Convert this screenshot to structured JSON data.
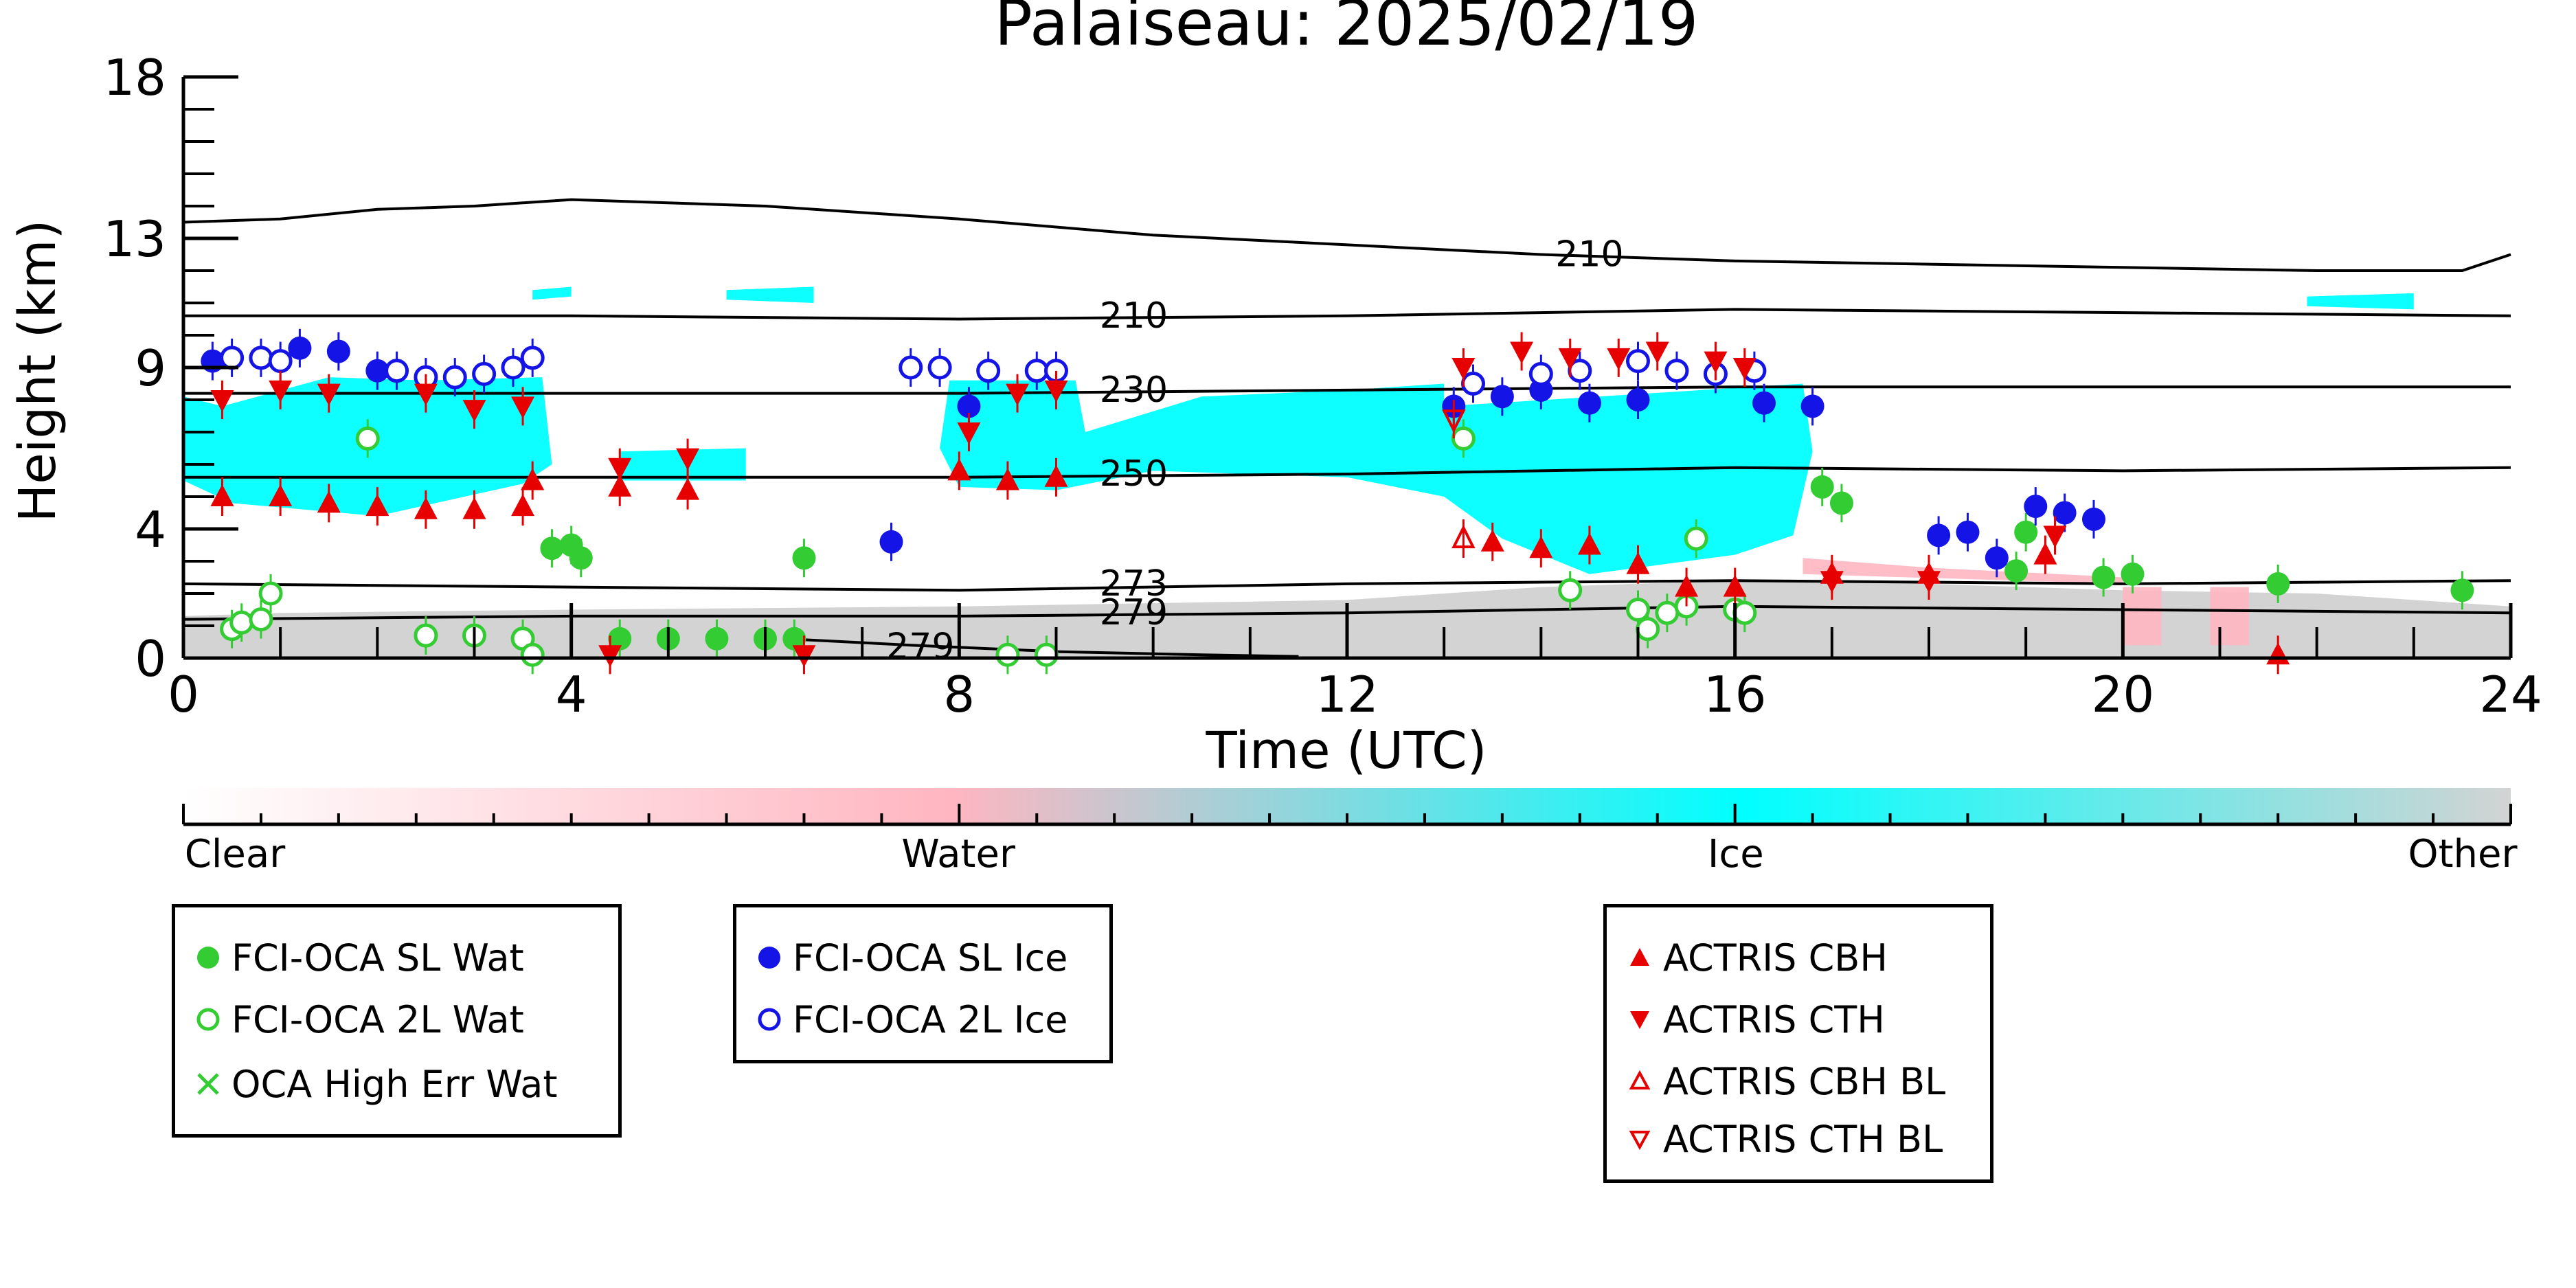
{
  "chart_data": {
    "type": "scatter",
    "title": "Palaiseau: 2025/02/19",
    "xlabel": "Time (UTC)",
    "ylabel": "Height (km)",
    "xlim": [
      0,
      24
    ],
    "ylim": [
      0,
      18
    ],
    "x_ticks": [
      "0",
      "4",
      "8",
      "12",
      "16",
      "20",
      "24"
    ],
    "y_ticks": [
      "0",
      "4",
      "9",
      "13",
      "18"
    ],
    "colorbar": {
      "labels": [
        "Clear",
        "Water",
        "Ice",
        "Other"
      ],
      "colors": [
        "#ffffff",
        "#ffb6c1",
        "#00ffff",
        "#d3d3d3"
      ]
    },
    "background": {
      "description_classes": [
        "Ice",
        "Other",
        "Water"
      ],
      "ice_color": "#00ffff",
      "other_color": "#d3d3d3",
      "water_color": "#ffb6c1"
    },
    "contours": [
      {
        "label": "210",
        "points": [
          [
            0,
            13.5
          ],
          [
            1,
            13.6
          ],
          [
            2,
            13.9
          ],
          [
            3,
            14.0
          ],
          [
            4,
            14.2
          ],
          [
            6,
            14.0
          ],
          [
            8,
            13.6
          ],
          [
            10,
            13.1
          ],
          [
            12,
            12.8
          ],
          [
            14,
            12.5
          ],
          [
            16,
            12.3
          ],
          [
            18,
            12.2
          ],
          [
            20,
            12.1
          ],
          [
            22,
            12.0
          ],
          [
            23.5,
            12.0
          ],
          [
            24,
            12.5
          ]
        ]
      },
      {
        "label": "210",
        "points": [
          [
            0,
            10.6
          ],
          [
            4,
            10.6
          ],
          [
            8,
            10.5
          ],
          [
            12,
            10.6
          ],
          [
            16,
            10.8
          ],
          [
            20,
            10.7
          ],
          [
            24,
            10.6
          ]
        ]
      },
      {
        "label": "230",
        "points": [
          [
            0,
            8.2
          ],
          [
            4,
            8.2
          ],
          [
            8,
            8.2
          ],
          [
            12,
            8.3
          ],
          [
            16,
            8.4
          ],
          [
            20,
            8.4
          ],
          [
            24,
            8.4
          ]
        ]
      },
      {
        "label": "250",
        "points": [
          [
            0,
            5.6
          ],
          [
            4,
            5.6
          ],
          [
            8,
            5.6
          ],
          [
            12,
            5.7
          ],
          [
            16,
            5.9
          ],
          [
            20,
            5.8
          ],
          [
            24,
            5.9
          ]
        ]
      },
      {
        "label": "273",
        "points": [
          [
            0,
            2.3
          ],
          [
            4,
            2.2
          ],
          [
            8,
            2.1
          ],
          [
            12,
            2.3
          ],
          [
            16,
            2.4
          ],
          [
            20,
            2.3
          ],
          [
            24,
            2.4
          ]
        ]
      },
      {
        "label": "279",
        "points": [
          [
            0,
            1.2
          ],
          [
            4,
            1.3
          ],
          [
            8,
            1.3
          ],
          [
            12,
            1.4
          ],
          [
            16,
            1.6
          ],
          [
            20,
            1.5
          ],
          [
            24,
            1.4
          ]
        ]
      },
      {
        "label": "279",
        "points": [
          [
            6.2,
            0.6
          ],
          [
            7.5,
            0.4
          ],
          [
            9,
            0.2
          ],
          [
            10.5,
            0.1
          ],
          [
            11.5,
            0.05
          ]
        ]
      }
    ],
    "series": [
      {
        "name": "FCI-OCA SL Wat",
        "marker": "filled-circle",
        "color": "#33cc33",
        "points": [
          [
            3.8,
            3.4
          ],
          [
            4.0,
            3.5
          ],
          [
            4.1,
            3.1
          ],
          [
            6.4,
            3.1
          ],
          [
            4.5,
            0.6
          ],
          [
            5.0,
            0.6
          ],
          [
            5.5,
            0.6
          ],
          [
            6.0,
            0.6
          ],
          [
            6.3,
            0.6
          ],
          [
            16.9,
            5.3
          ],
          [
            17.1,
            4.8
          ],
          [
            18.9,
            2.7
          ],
          [
            19.0,
            3.9
          ],
          [
            19.8,
            2.5
          ],
          [
            20.1,
            2.6
          ],
          [
            21.6,
            2.3
          ],
          [
            23.5,
            2.1
          ]
        ]
      },
      {
        "name": "FCI-OCA 2L Wat",
        "marker": "open-circle",
        "color": "#33cc33",
        "points": [
          [
            0.5,
            0.9
          ],
          [
            0.6,
            1.1
          ],
          [
            0.8,
            1.2
          ],
          [
            0.9,
            2.0
          ],
          [
            1.9,
            6.8
          ],
          [
            2.5,
            0.7
          ],
          [
            3.0,
            0.7
          ],
          [
            3.5,
            0.6
          ],
          [
            3.6,
            0.1
          ],
          [
            8.5,
            0.1
          ],
          [
            8.9,
            0.1
          ],
          [
            13.2,
            6.8
          ],
          [
            14.3,
            2.1
          ],
          [
            15.0,
            1.5
          ],
          [
            15.1,
            0.9
          ],
          [
            15.3,
            1.4
          ],
          [
            15.5,
            1.6
          ],
          [
            15.6,
            3.7
          ],
          [
            16.0,
            1.5
          ],
          [
            16.1,
            1.4
          ]
        ]
      },
      {
        "name": "OCA High Err Wat",
        "marker": "x",
        "color": "#33cc33",
        "points": []
      },
      {
        "name": "FCI-OCA SL Ice",
        "marker": "filled-circle",
        "color": "#1414e6",
        "points": [
          [
            0.3,
            9.2
          ],
          [
            1.2,
            9.6
          ],
          [
            1.6,
            9.5
          ],
          [
            2.0,
            8.9
          ],
          [
            8.1,
            7.8
          ],
          [
            7.3,
            3.6
          ],
          [
            13.1,
            7.8
          ],
          [
            13.6,
            8.1
          ],
          [
            14.0,
            8.3
          ],
          [
            14.5,
            7.9
          ],
          [
            15.0,
            8.0
          ],
          [
            16.3,
            7.9
          ],
          [
            16.8,
            7.8
          ],
          [
            18.1,
            3.8
          ],
          [
            18.4,
            3.9
          ],
          [
            18.7,
            3.1
          ],
          [
            19.1,
            4.7
          ],
          [
            19.4,
            4.5
          ],
          [
            19.7,
            4.3
          ]
        ]
      },
      {
        "name": "FCI-OCA 2L Ice",
        "marker": "open-circle",
        "color": "#1414e6",
        "points": [
          [
            0.5,
            9.3
          ],
          [
            0.8,
            9.3
          ],
          [
            1.0,
            9.2
          ],
          [
            2.2,
            8.9
          ],
          [
            2.5,
            8.7
          ],
          [
            2.8,
            8.7
          ],
          [
            3.1,
            8.8
          ],
          [
            3.4,
            9.0
          ],
          [
            3.6,
            9.3
          ],
          [
            7.5,
            9.0
          ],
          [
            7.8,
            9.0
          ],
          [
            8.3,
            8.9
          ],
          [
            8.8,
            8.9
          ],
          [
            9.0,
            8.9
          ],
          [
            13.3,
            8.5
          ],
          [
            14.0,
            8.8
          ],
          [
            14.4,
            8.9
          ],
          [
            15.0,
            9.2
          ],
          [
            15.4,
            8.9
          ],
          [
            15.8,
            8.8
          ],
          [
            16.2,
            8.9
          ]
        ]
      },
      {
        "name": "ACTRIS CBH",
        "marker": "filled-triangle-up",
        "color": "#e60000",
        "points": [
          [
            0.4,
            5.0
          ],
          [
            1.0,
            5.0
          ],
          [
            1.5,
            4.8
          ],
          [
            2.0,
            4.7
          ],
          [
            2.5,
            4.6
          ],
          [
            3.0,
            4.6
          ],
          [
            3.5,
            4.7
          ],
          [
            3.6,
            5.5
          ],
          [
            4.5,
            5.3
          ],
          [
            5.2,
            5.2
          ],
          [
            8.0,
            5.8
          ],
          [
            8.5,
            5.5
          ],
          [
            9.0,
            5.6
          ],
          [
            13.5,
            3.6
          ],
          [
            14.0,
            3.4
          ],
          [
            14.5,
            3.5
          ],
          [
            15.0,
            2.9
          ],
          [
            15.5,
            2.2
          ],
          [
            16.0,
            2.2
          ],
          [
            17.0,
            2.6
          ],
          [
            18.0,
            2.6
          ],
          [
            19.2,
            3.2
          ],
          [
            21.6,
            0.1
          ]
        ]
      },
      {
        "name": "ACTRIS CTH",
        "marker": "filled-triangle-down",
        "color": "#e60000",
        "points": [
          [
            0.4,
            8.0
          ],
          [
            1.0,
            8.3
          ],
          [
            1.5,
            8.2
          ],
          [
            2.5,
            8.2
          ],
          [
            3.0,
            7.7
          ],
          [
            3.5,
            7.8
          ],
          [
            4.5,
            5.9
          ],
          [
            5.2,
            6.2
          ],
          [
            8.1,
            7.0
          ],
          [
            8.6,
            8.2
          ],
          [
            9.0,
            8.3
          ],
          [
            13.2,
            9.0
          ],
          [
            13.8,
            9.5
          ],
          [
            14.3,
            9.3
          ],
          [
            14.8,
            9.3
          ],
          [
            15.2,
            9.5
          ],
          [
            15.8,
            9.2
          ],
          [
            16.1,
            9.0
          ],
          [
            17.0,
            2.4
          ],
          [
            18.0,
            2.4
          ],
          [
            19.3,
            3.8
          ],
          [
            6.4,
            0.1
          ],
          [
            4.4,
            0.1
          ]
        ]
      },
      {
        "name": "ACTRIS CBH BL",
        "marker": "open-triangle-up",
        "color": "#e60000",
        "points": [
          [
            13.2,
            3.7
          ]
        ]
      },
      {
        "name": "ACTRIS CTH BL",
        "marker": "open-triangle-down",
        "color": "#e60000",
        "points": [
          [
            13.1,
            7.4
          ]
        ]
      }
    ]
  }
}
